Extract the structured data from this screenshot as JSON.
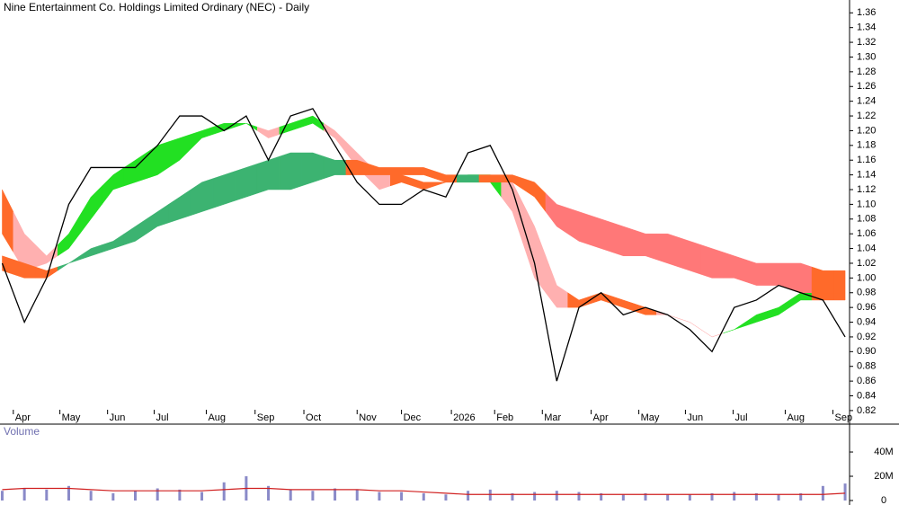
{
  "chart_data": [
    {
      "type": "line",
      "title": "Nine Entertainment Co. Holdings Limited Ordinary (NEC) - Daily",
      "x": [
        -1,
        1,
        3,
        5,
        7,
        9,
        11,
        13,
        15,
        17,
        19,
        21,
        23,
        25,
        27,
        29,
        31,
        33,
        35,
        37,
        39,
        41,
        43,
        45,
        47,
        49,
        51,
        53,
        55,
        57,
        59,
        61,
        63,
        65,
        67,
        69,
        71,
        73,
        75
      ],
      "values": [
        1.02,
        0.94,
        1.0,
        1.1,
        1.15,
        1.15,
        1.15,
        1.18,
        1.22,
        1.22,
        1.2,
        1.22,
        1.16,
        1.22,
        1.23,
        1.18,
        1.13,
        1.1,
        1.1,
        1.12,
        1.11,
        1.17,
        1.18,
        1.12,
        1.02,
        0.86,
        0.96,
        0.98,
        0.95,
        0.96,
        0.95,
        0.93,
        0.9,
        0.96,
        0.97,
        0.99,
        0.98,
        0.97,
        0.92
      ],
      "color": "#000000",
      "bands": [
        {
          "upper": [
            1.12,
            1.06,
            1.03,
            1.06,
            1.11,
            1.14,
            1.16,
            1.18,
            1.19,
            1.2,
            1.21,
            1.21,
            1.2,
            1.21,
            1.22,
            1.2,
            1.17,
            1.14,
            1.14,
            1.13,
            1.13,
            1.14,
            1.14,
            1.13,
            1.07,
            0.99,
            0.97,
            0.98,
            0.97,
            0.96,
            0.95,
            0.94,
            0.92,
            0.93,
            0.95,
            0.96,
            0.98,
            0.98,
            0.98
          ],
          "lower": [
            1.06,
            1.01,
            1.02,
            1.04,
            1.08,
            1.12,
            1.13,
            1.14,
            1.16,
            1.19,
            1.2,
            1.21,
            1.19,
            1.2,
            1.21,
            1.19,
            1.15,
            1.12,
            1.13,
            1.12,
            1.13,
            1.13,
            1.13,
            1.09,
            1.0,
            0.96,
            0.96,
            0.97,
            0.96,
            0.95,
            0.95,
            0.94,
            0.92,
            0.93,
            0.94,
            0.95,
            0.97,
            0.97,
            0.97
          ],
          "colors": [
            "#ff6a2a",
            "#ffb0b0",
            "#ffb0b0",
            "#22e022",
            "#22e022",
            "#22e022",
            "#22e022",
            "#22e022",
            "#22e022",
            "#22e022",
            "#22e022",
            "#22e022",
            "#ffb0b0",
            "#22e022",
            "#22e022",
            "#ffb0b0",
            "#ffb0b0",
            "#ffb0b0",
            "#ff6a2a",
            "#ff6a2a",
            "#ff6a2a",
            "#22e022",
            "#22e022",
            "#ffb0b0",
            "#ffb0b0",
            "#ffb0b0",
            "#ff6a2a",
            "#ff6a2a",
            "#ff6a2a",
            "#ff6a2a",
            "#ffb0b0",
            "#ffb0b0",
            "#ffb0b0",
            "#22e022",
            "#22e022",
            "#22e022",
            "#22e022",
            "#ff6a2a",
            "#ff6a2a"
          ]
        },
        {
          "upper": [
            1.03,
            1.02,
            1.01,
            1.02,
            1.04,
            1.05,
            1.07,
            1.09,
            1.11,
            1.13,
            1.14,
            1.15,
            1.16,
            1.17,
            1.17,
            1.16,
            1.16,
            1.15,
            1.15,
            1.15,
            1.14,
            1.14,
            1.14,
            1.14,
            1.13,
            1.1,
            1.09,
            1.08,
            1.07,
            1.06,
            1.06,
            1.05,
            1.04,
            1.03,
            1.02,
            1.02,
            1.02,
            1.01,
            1.01
          ],
          "lower": [
            1.01,
            1.0,
            1.0,
            1.02,
            1.03,
            1.04,
            1.05,
            1.07,
            1.08,
            1.09,
            1.1,
            1.11,
            1.12,
            1.12,
            1.13,
            1.14,
            1.14,
            1.14,
            1.14,
            1.14,
            1.13,
            1.13,
            1.13,
            1.13,
            1.11,
            1.07,
            1.05,
            1.04,
            1.03,
            1.03,
            1.02,
            1.01,
            1.0,
            1.0,
            0.99,
            0.99,
            0.98,
            0.98,
            0.98
          ],
          "colors": [
            "#ff6a2a",
            "#ff6a2a",
            "#ff6a2a",
            "#3cb371",
            "#3cb371",
            "#3cb371",
            "#3cb371",
            "#3cb371",
            "#3cb371",
            "#3cb371",
            "#3cb371",
            "#3cb371",
            "#3cb371",
            "#3cb371",
            "#3cb371",
            "#3cb371",
            "#ff6a2a",
            "#ff6a2a",
            "#ff6a2a",
            "#ff6a2a",
            "#ff6a2a",
            "#3cb371",
            "#ff6a2a",
            "#ff6a2a",
            "#ff6a2a",
            "#ff7878",
            "#ff7878",
            "#ff7878",
            "#ff7878",
            "#ff7878",
            "#ff7878",
            "#ff7878",
            "#ff7878",
            "#ff7878",
            "#ff7878",
            "#ff7878",
            "#ff7878",
            "#ff6a2a",
            "#ff6a2a"
          ]
        }
      ],
      "xlim": [
        -1.2,
        75.4
      ],
      "ylim": [
        0.815,
        1.375
      ],
      "xticks": [
        {
          "value": 0,
          "label": "Apr"
        },
        {
          "value": 4.2,
          "label": "May"
        },
        {
          "value": 8.5,
          "label": "Jun"
        },
        {
          "value": 12.7,
          "label": "Jul"
        },
        {
          "value": 17.4,
          "label": "Aug"
        },
        {
          "value": 21.8,
          "label": "Sep"
        },
        {
          "value": 26.2,
          "label": "Oct"
        },
        {
          "value": 31,
          "label": "Nov"
        },
        {
          "value": 35,
          "label": "Dec"
        },
        {
          "value": 39.5,
          "label": "2026"
        },
        {
          "value": 43.4,
          "label": "Feb"
        },
        {
          "value": 47.7,
          "label": "Mar"
        },
        {
          "value": 52.1,
          "label": "Apr"
        },
        {
          "value": 56.4,
          "label": "May"
        },
        {
          "value": 60.6,
          "label": "Jun"
        },
        {
          "value": 64.9,
          "label": "Jul"
        },
        {
          "value": 69.6,
          "label": "Aug"
        },
        {
          "value": 73.9,
          "label": "Sep"
        }
      ],
      "yticks": [
        0.82,
        0.84,
        0.86,
        0.88,
        {
          "value": 0.9,
          "label": "0.90"
        },
        0.92,
        0.94,
        0.96,
        0.98,
        {
          "value": 1,
          "label": "1.00"
        },
        1.02,
        1.04,
        1.06,
        1.08,
        {
          "value": 1.1,
          "label": "1.10"
        },
        1.12,
        1.14,
        1.16,
        1.18,
        {
          "value": 1.2,
          "label": "1.20"
        },
        1.22,
        1.24,
        1.26,
        1.28,
        {
          "value": 1.3,
          "label": "1.30"
        },
        1.32,
        1.34,
        1.36
      ]
    },
    {
      "type": "bar",
      "title": "Volume",
      "values": [
        8000000,
        10000000,
        9000000,
        12000000,
        8000000,
        6000000,
        8000000,
        10000000,
        9000000,
        7000000,
        15000000,
        20000000,
        12000000,
        9000000,
        8000000,
        10000000,
        9000000,
        7000000,
        7000000,
        6000000,
        5000000,
        8000000,
        9000000,
        6000000,
        7000000,
        8000000,
        7000000,
        6000000,
        5000000,
        6000000,
        5000000,
        5000000,
        6000000,
        7000000,
        6000000,
        5000000,
        6000000,
        12000000,
        14000000
      ],
      "volume_ma": [
        9000000,
        10000000,
        10000000,
        10000000,
        9000000,
        8000000,
        8000000,
        8000000,
        8000000,
        8000000,
        9000000,
        10000000,
        10000000,
        9000000,
        9000000,
        9000000,
        9000000,
        8000000,
        8000000,
        7000000,
        6000000,
        5000000,
        5000000,
        5000000,
        5000000,
        5000000,
        5000000,
        5000000,
        5000000,
        5000000,
        5000000,
        5000000,
        5000000,
        5000000,
        5000000,
        5000000,
        5000000,
        5000000,
        6000000
      ],
      "color": "#8a8ac8",
      "ma_color": "#d02020",
      "ylim": [
        0,
        63000000
      ],
      "yticks": [
        0,
        {
          "value": 20000000,
          "label": "20M"
        },
        {
          "value": 40000000,
          "label": "40M"
        }
      ]
    }
  ]
}
